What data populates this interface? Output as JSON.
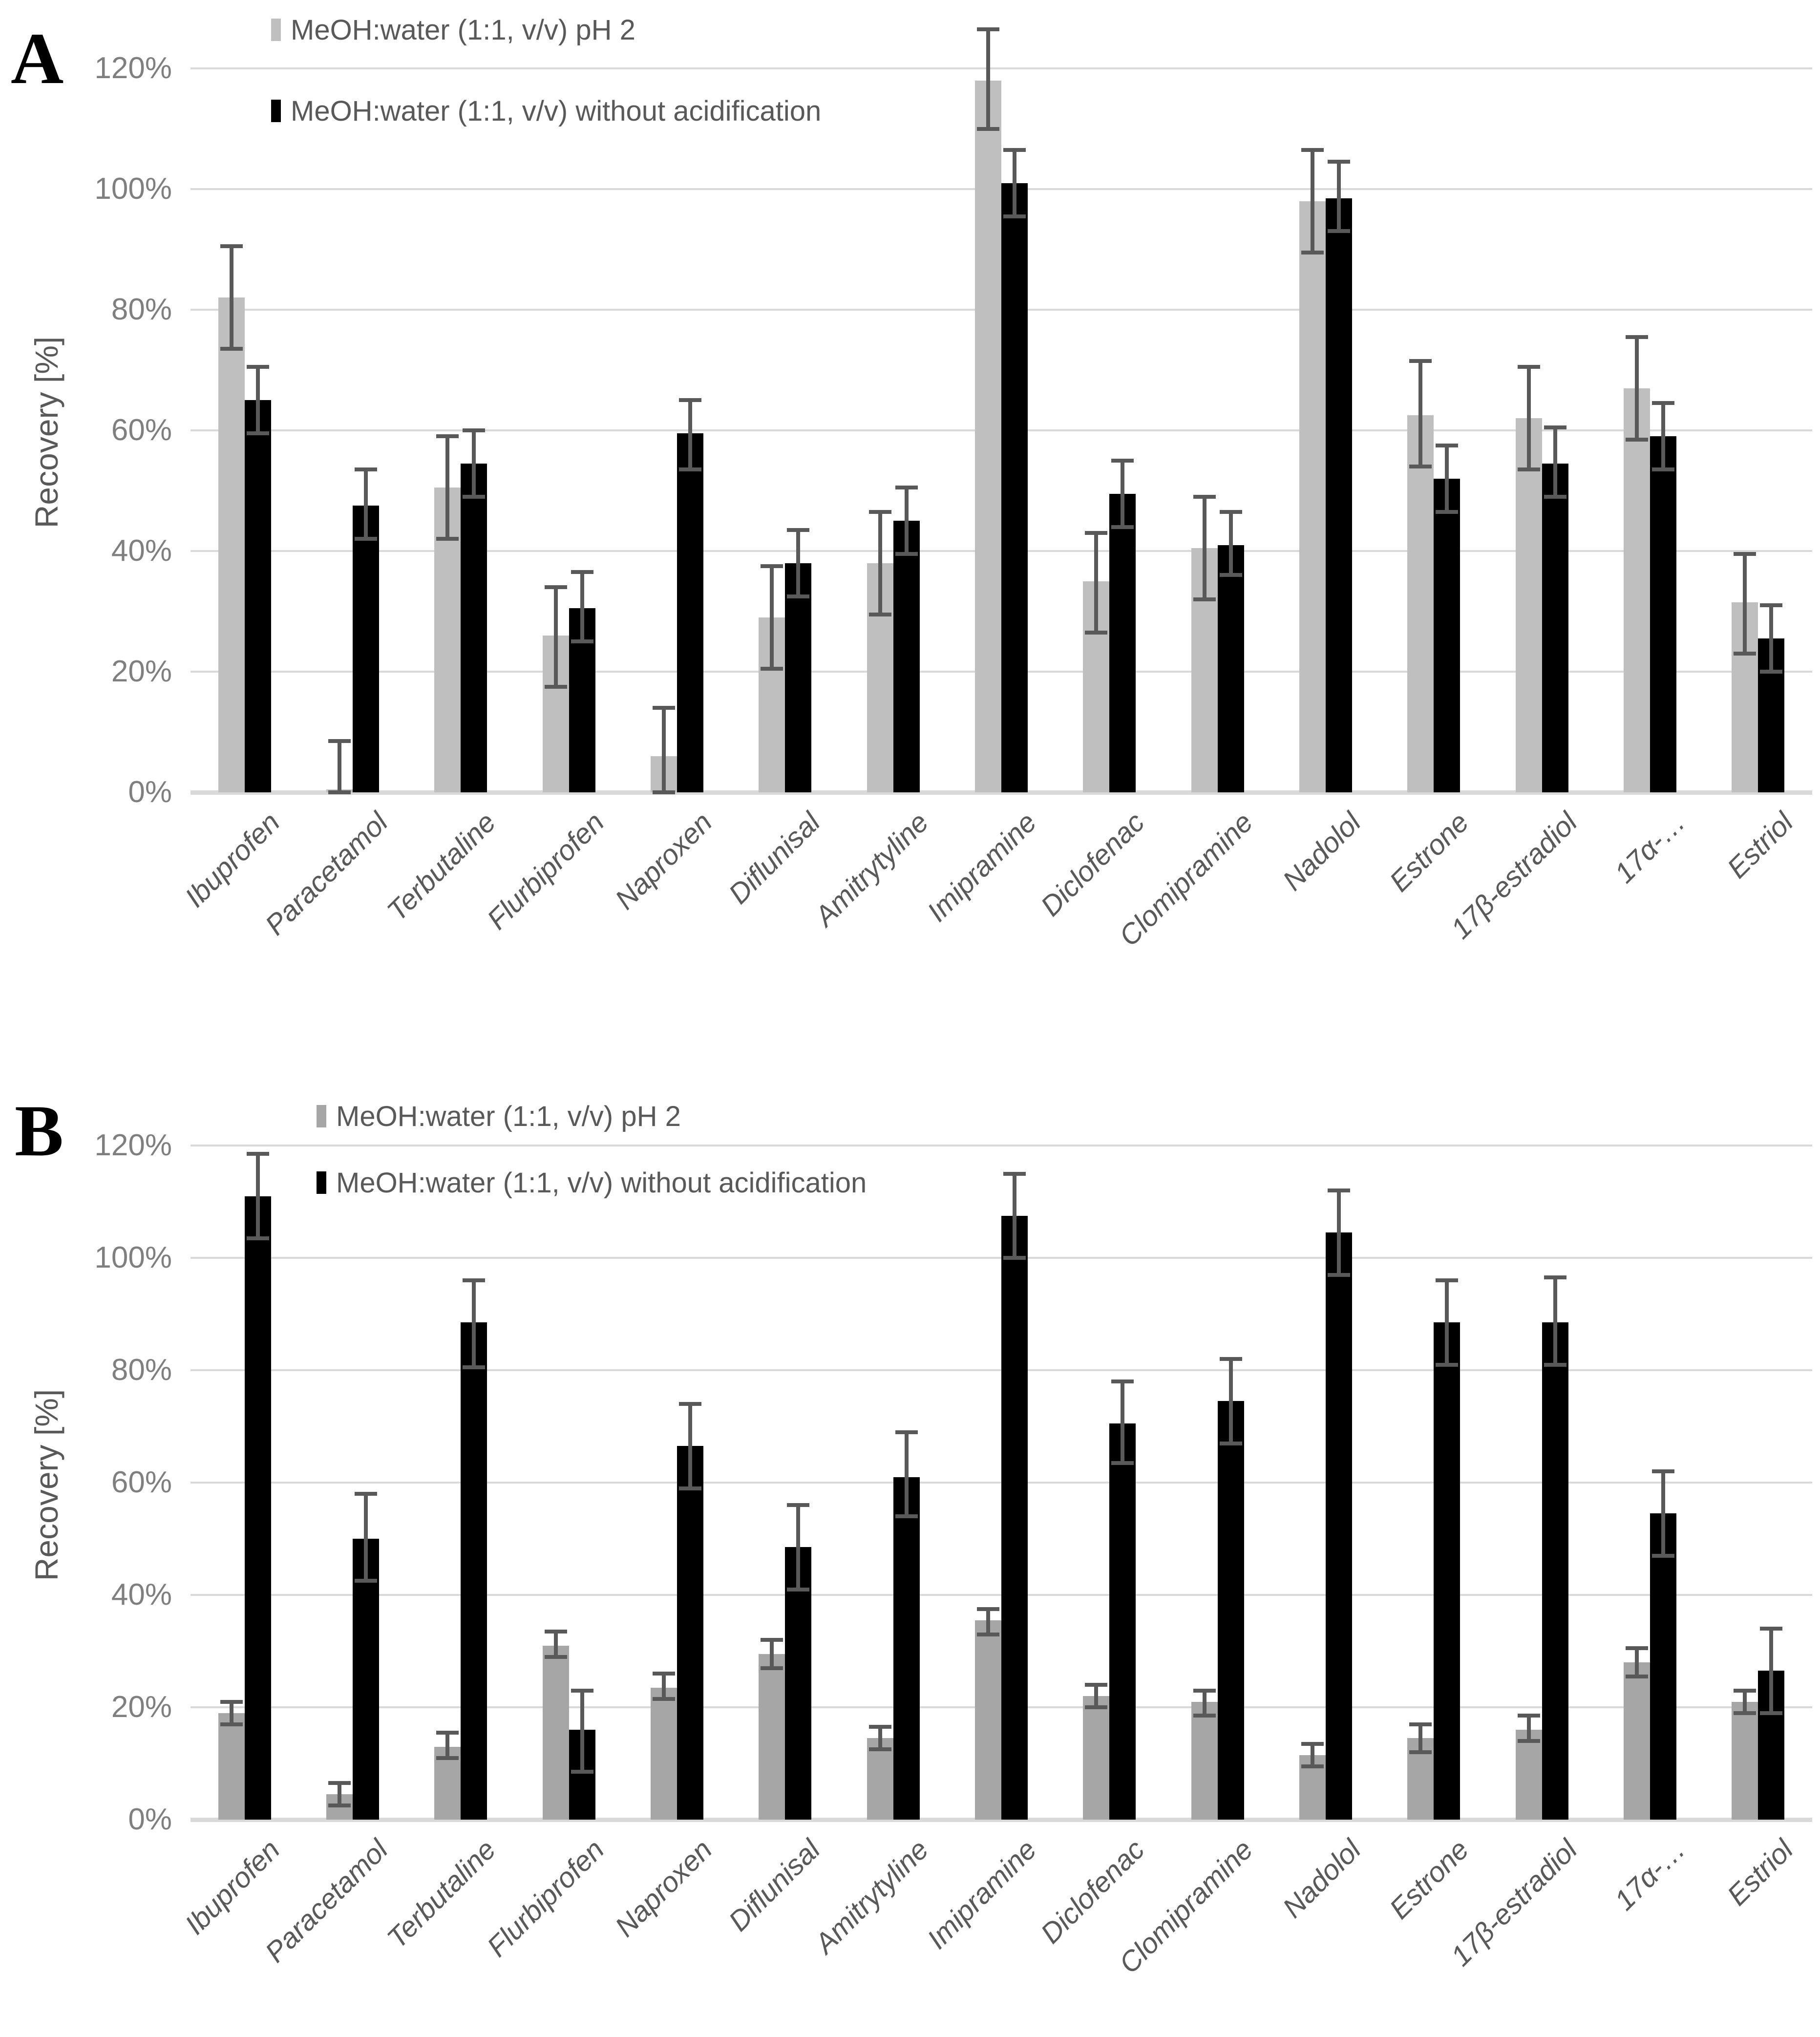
{
  "figure": {
    "background": "#ffffff",
    "grid_color": "#D9D9D9",
    "error_bar_color": "#595959",
    "tick_text_color": "#7F7F7F",
    "label_text_color": "#595959"
  },
  "chart_data": [
    {
      "type": "bar",
      "panel_label": "A",
      "ylabel": "Recovery [%]",
      "ylim": [
        0,
        120
      ],
      "yticks": [
        "0%",
        "20%",
        "40%",
        "60%",
        "80%",
        "100%",
        "120%"
      ],
      "grid": true,
      "legend_position": "top-left",
      "categories": [
        "Ibuprofen",
        "Paracetamol",
        "Terbutaline",
        "Flurbiprofen",
        "Naproxen",
        "Diflunisal",
        "Amitrytyline",
        "Imipramine",
        "Diclofenac",
        "Clomipramine",
        "Nadolol",
        "Estrone",
        "17β-estradiol",
        "17α-…",
        "Estriol"
      ],
      "series": [
        {
          "name": "MeOH:water (1:1, v/v) pH 2",
          "color": "#BFBFBF",
          "values": [
            82,
            0.5,
            50.5,
            26,
            6,
            29,
            38,
            118,
            35,
            40.5,
            98,
            62.5,
            62,
            67,
            31.5
          ],
          "err_lo": [
            73.5,
            0,
            42,
            17.5,
            0,
            20.5,
            29.5,
            110,
            26.5,
            32,
            89.5,
            54,
            53.5,
            58.5,
            23
          ],
          "err_hi": [
            90.5,
            8.5,
            59,
            34,
            14,
            37.5,
            46.5,
            126.5,
            43,
            49,
            106.5,
            71.5,
            70.5,
            75.5,
            39.5
          ]
        },
        {
          "name": "MeOH:water (1:1, v/v) without acidification",
          "color": "#000000",
          "values": [
            65,
            47.5,
            54.5,
            30.5,
            59.5,
            38,
            45,
            101,
            49.5,
            41,
            98.5,
            52,
            54.5,
            59,
            25.5
          ],
          "err_lo": [
            59.5,
            42,
            49,
            25,
            53.5,
            32.5,
            39.5,
            95.5,
            44,
            36,
            93,
            46.5,
            49,
            53.5,
            20
          ],
          "err_hi": [
            70.5,
            53.5,
            60,
            36.5,
            65,
            43.5,
            50.5,
            106.5,
            55,
            46.5,
            104.5,
            57.5,
            60.5,
            64.5,
            31
          ]
        }
      ]
    },
    {
      "type": "bar",
      "panel_label": "B",
      "ylabel": "Recovery [%]",
      "ylim": [
        0,
        120
      ],
      "yticks": [
        "0%",
        "20%",
        "40%",
        "60%",
        "80%",
        "100%",
        "120%"
      ],
      "grid": true,
      "legend_position": "top-left",
      "categories": [
        "Ibuprofen",
        "Paracetamol",
        "Terbutaline",
        "Flurbiprofen",
        "Naproxen",
        "Diflunisal",
        "Amitrytyline",
        "Imipramine",
        "Diclofenac",
        "Clomipramine",
        "Nadolol",
        "Estrone",
        "17β-estradiol",
        "17α-…",
        "Estriol"
      ],
      "series": [
        {
          "name": "MeOH:water (1:1, v/v) pH 2",
          "color": "#A6A6A6",
          "values": [
            19,
            4.5,
            13,
            31,
            23.5,
            29.5,
            14.5,
            35.5,
            22,
            21,
            11.5,
            14.5,
            16,
            28,
            21
          ],
          "err_lo": [
            17,
            2.5,
            11,
            29,
            21.5,
            27,
            12.5,
            33,
            20,
            18.5,
            9.5,
            12,
            14,
            25.5,
            19
          ],
          "err_hi": [
            21,
            6.5,
            15.5,
            33.5,
            26,
            32,
            16.5,
            37.5,
            24,
            23,
            13.5,
            17,
            18.5,
            30.5,
            23
          ]
        },
        {
          "name": "MeOH:water (1:1, v/v) without acidification",
          "color": "#000000",
          "values": [
            111,
            50,
            88.5,
            16,
            66.5,
            48.5,
            61,
            107.5,
            70.5,
            74.5,
            104.5,
            88.5,
            88.5,
            54.5,
            26.5
          ],
          "err_lo": [
            103.5,
            42.5,
            80.5,
            8.5,
            59,
            41,
            54,
            100,
            63.5,
            67,
            97,
            81,
            81,
            47,
            19
          ],
          "err_hi": [
            118.5,
            58,
            96,
            23,
            74,
            56,
            69,
            115,
            78,
            82,
            112,
            96,
            96.5,
            62,
            34
          ]
        }
      ]
    }
  ]
}
